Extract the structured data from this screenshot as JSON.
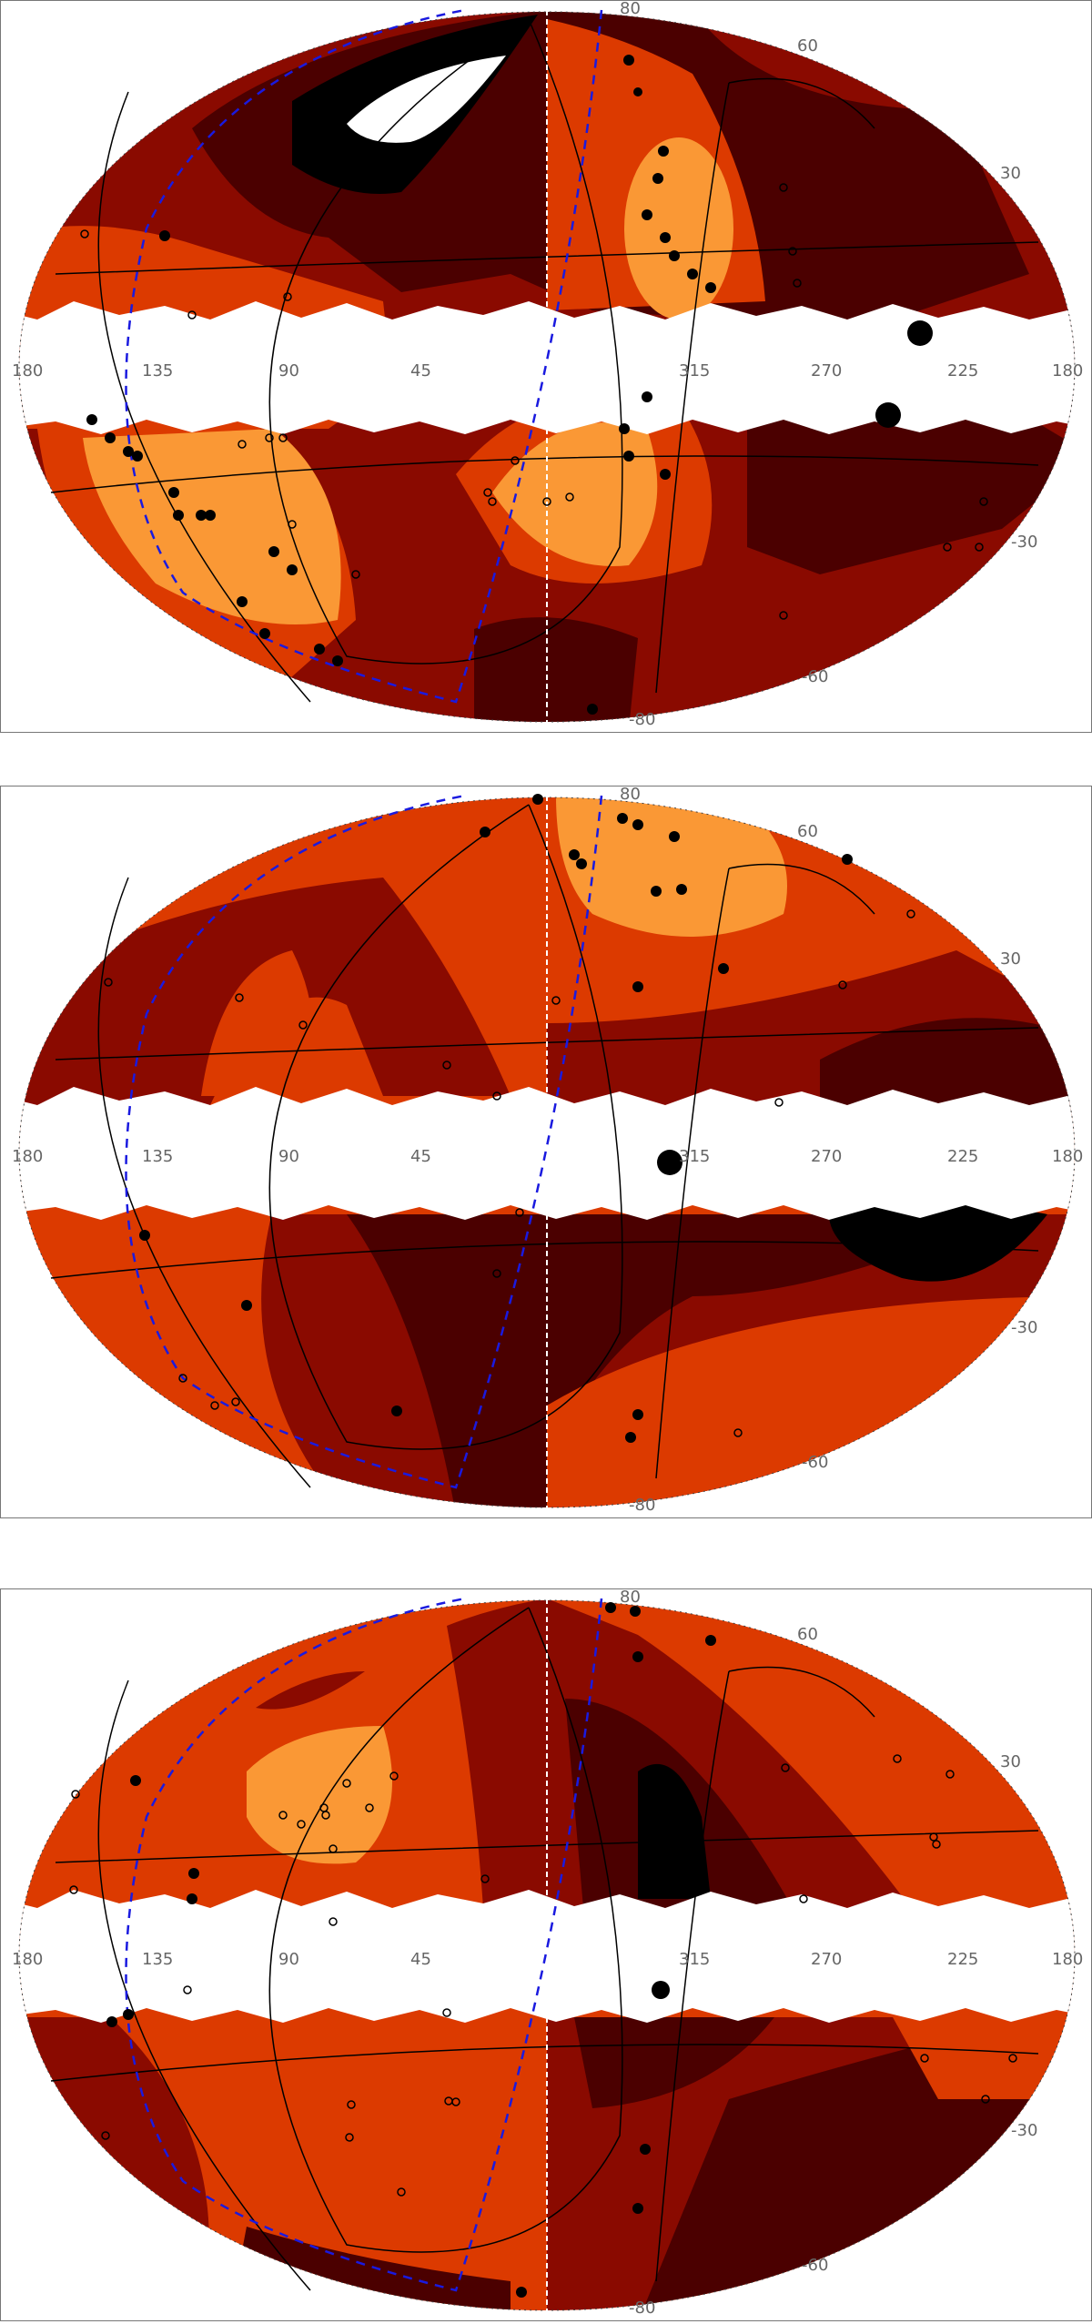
{
  "colors": {
    "level_0": "#000000",
    "level_1": "#4b0000",
    "level_2": "#8a0a00",
    "level_3": "#dc3a00",
    "level_4": "#fa9835",
    "mask": "#ffffff",
    "dashed_curve": "#1a1adf",
    "markers": "#000000"
  },
  "longitude_labels": [
    "180",
    "135",
    "90",
    "45",
    "315",
    "270",
    "225",
    "180"
  ],
  "latitude_labels_top": [
    "80",
    "60",
    "30"
  ],
  "latitude_labels_bottom": [
    "-30",
    "-60",
    "-80"
  ],
  "panels": [
    {
      "name": "panel-1",
      "filled_dots": 40,
      "open_circles": 25
    },
    {
      "name": "panel-2",
      "filled_dots": 18,
      "open_circles": 14
    },
    {
      "name": "panel-3",
      "filled_dots": 14,
      "open_circles": 25
    }
  ]
}
